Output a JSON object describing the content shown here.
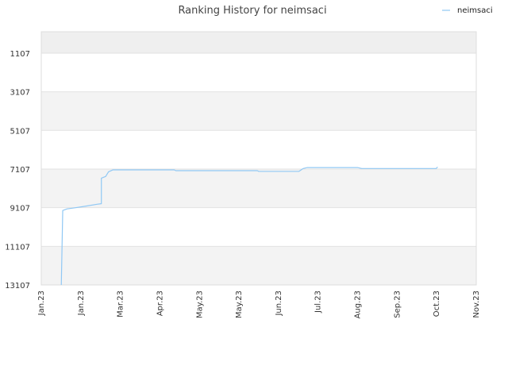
{
  "chart_data": {
    "type": "line",
    "title": "Ranking History for neimsaci",
    "xlabel": "",
    "ylabel": "",
    "y_inverted": true,
    "ylim": [
      13107,
      0
    ],
    "grid": true,
    "legend": "top-right",
    "x_tick_labels": [
      "Jan.23",
      "Jan.23",
      "Mar.23",
      "Apr.23",
      "May.23",
      "May.23",
      "Jun.23",
      "Jul.23",
      "Aug.23",
      "Sep.23",
      "Oct.23",
      "Nov.23"
    ],
    "y_tick_labels": [
      "1107",
      "3107",
      "5107",
      "7107",
      "9107",
      "11107",
      "13107"
    ],
    "y_tick_values": [
      1107,
      3107,
      5107,
      7107,
      9107,
      11107,
      13107
    ],
    "series": [
      {
        "name": "neimsaci",
        "color": "#90c8f4",
        "points": [
          [
            "2023-01-15",
            13107
          ],
          [
            "2023-01-16",
            9250
          ],
          [
            "2023-01-19",
            9170
          ],
          [
            "2023-01-24",
            9120
          ],
          [
            "2023-02-01",
            9030
          ],
          [
            "2023-02-09",
            8930
          ],
          [
            "2023-02-12",
            8900
          ],
          [
            "2023-02-12",
            7580
          ],
          [
            "2023-02-15",
            7490
          ],
          [
            "2023-02-17",
            7250
          ],
          [
            "2023-02-20",
            7150
          ],
          [
            "2023-03-01",
            7150
          ],
          [
            "2023-04-04",
            7150
          ],
          [
            "2023-04-05",
            7190
          ],
          [
            "2023-05-10",
            7190
          ],
          [
            "2023-06-01",
            7190
          ],
          [
            "2023-06-02",
            7230
          ],
          [
            "2023-06-30",
            7230
          ],
          [
            "2023-07-03",
            7080
          ],
          [
            "2023-07-06",
            7030
          ],
          [
            "2023-08-10",
            7030
          ],
          [
            "2023-08-13",
            7080
          ],
          [
            "2023-10-04",
            7080
          ],
          [
            "2023-10-05",
            7000
          ]
        ]
      }
    ]
  }
}
